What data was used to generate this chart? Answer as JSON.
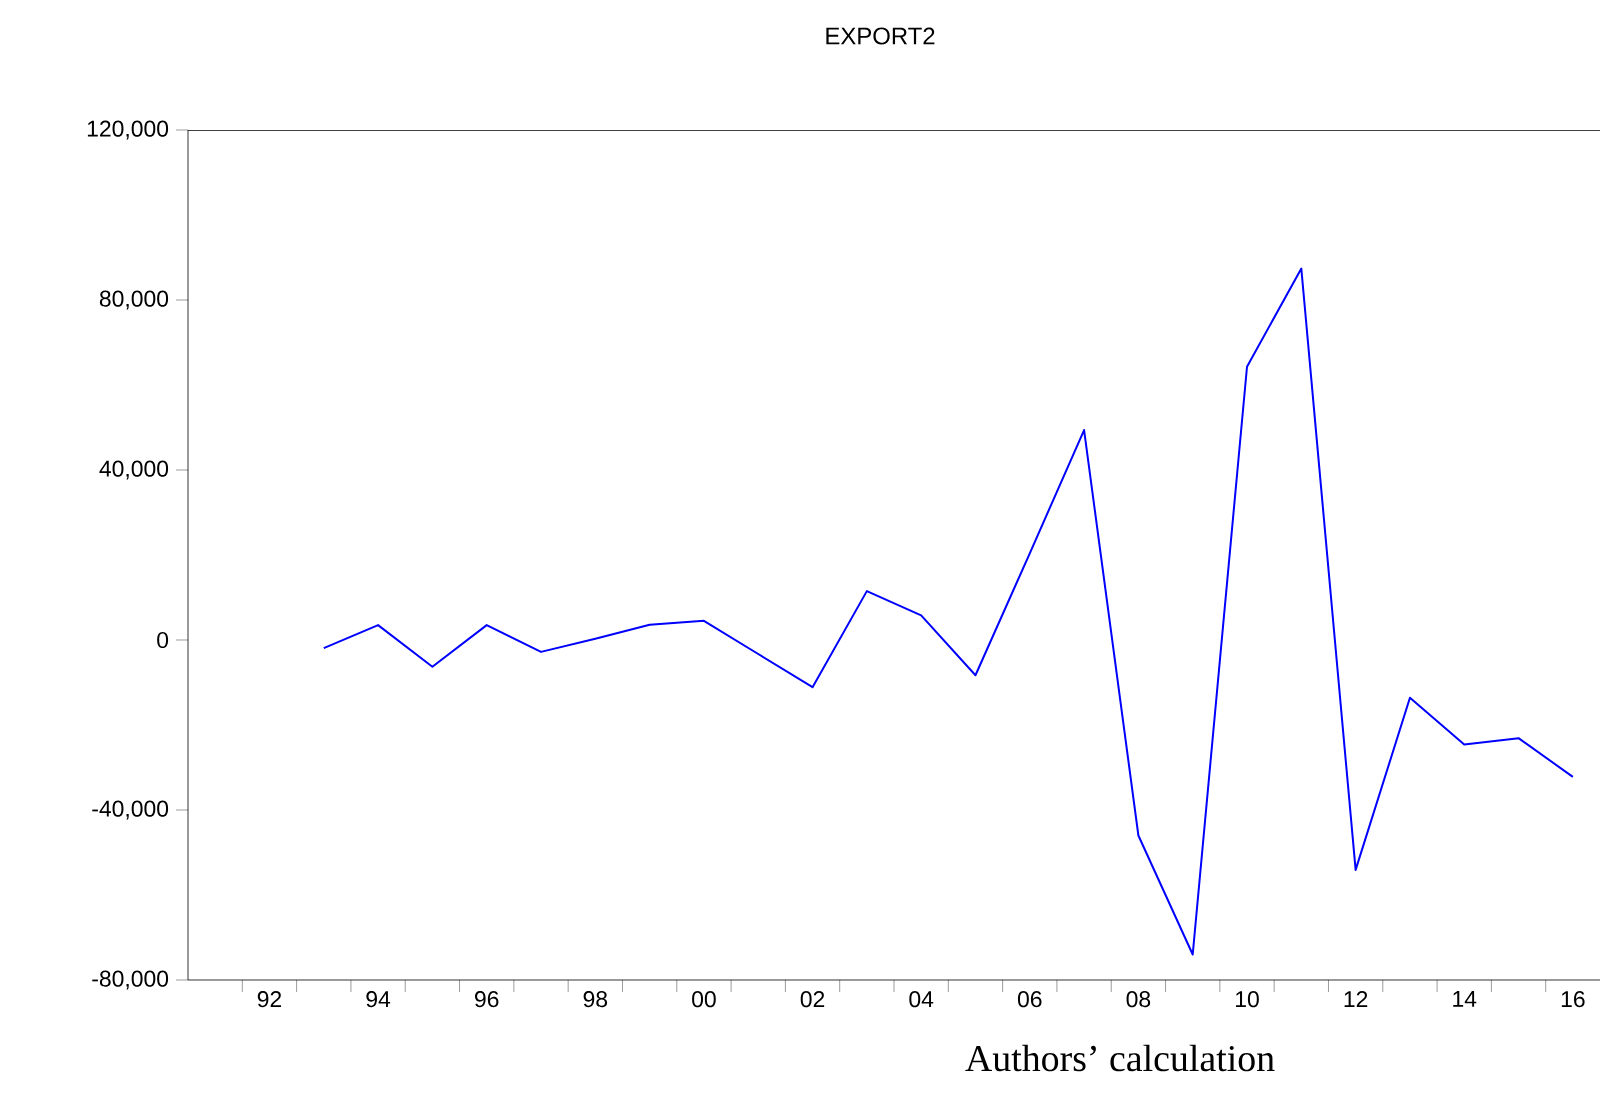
{
  "chart_data": {
    "type": "line",
    "title": "EXPORT2",
    "annotations": [
      "Authors’ calculation"
    ],
    "x": [
      1993,
      1994,
      1995,
      1996,
      1997,
      1998,
      1999,
      2000,
      2001,
      2002,
      2003,
      2004,
      2005,
      2006,
      2007,
      2008,
      2009,
      2010,
      2011,
      2012,
      2013,
      2014,
      2015,
      2016
    ],
    "series": [
      {
        "color": "#0000ff",
        "values": [
          -1900,
          3500,
          -6300,
          3500,
          -2800,
          300,
          3600,
          4500,
          -3300,
          -11100,
          11500,
          5800,
          -8300,
          20400,
          49400,
          -46000,
          -74000,
          64300,
          87400,
          -54100,
          -13600,
          -24600,
          -23100,
          -32200
        ]
      }
    ],
    "xlim": [
      1990.5,
      2016.5
    ],
    "xticks": [
      {
        "value": 1992,
        "label": "92"
      },
      {
        "value": 1994,
        "label": "94"
      },
      {
        "value": 1996,
        "label": "96"
      },
      {
        "value": 1998,
        "label": "98"
      },
      {
        "value": 2000,
        "label": "00"
      },
      {
        "value": 2002,
        "label": "02"
      },
      {
        "value": 2004,
        "label": "04"
      },
      {
        "value": 2006,
        "label": "06"
      },
      {
        "value": 2008,
        "label": "08"
      },
      {
        "value": 2010,
        "label": "10"
      },
      {
        "value": 2012,
        "label": "12"
      },
      {
        "value": 2014,
        "label": "14"
      },
      {
        "value": 2016,
        "label": "16"
      },
      {
        "value": 1991.5,
        "label": null
      },
      {
        "value": 1992.5,
        "label": null
      },
      {
        "value": 1993.5,
        "label": null
      },
      {
        "value": 1994.5,
        "label": null
      },
      {
        "value": 1995.5,
        "label": null
      },
      {
        "value": 1996.5,
        "label": null
      },
      {
        "value": 1997.5,
        "label": null
      },
      {
        "value": 1998.5,
        "label": null
      },
      {
        "value": 1999.5,
        "label": null
      },
      {
        "value": 2000.5,
        "label": null
      },
      {
        "value": 2001.5,
        "label": null
      },
      {
        "value": 2002.5,
        "label": null
      },
      {
        "value": 2003.5,
        "label": null
      },
      {
        "value": 2004.5,
        "label": null
      },
      {
        "value": 2005.5,
        "label": null
      },
      {
        "value": 2006.5,
        "label": null
      },
      {
        "value": 2007.5,
        "label": null
      },
      {
        "value": 2008.5,
        "label": null
      },
      {
        "value": 2009.5,
        "label": null
      },
      {
        "value": 2010.5,
        "label": null
      },
      {
        "value": 2011.5,
        "label": null
      },
      {
        "value": 2012.5,
        "label": null
      },
      {
        "value": 2013.5,
        "label": null
      },
      {
        "value": 2014.5,
        "label": null
      },
      {
        "value": 2015.5,
        "label": null
      }
    ],
    "ylim": [
      -80000,
      120000
    ],
    "yticks": [
      {
        "value": -80000,
        "label": "-80,000"
      },
      {
        "value": -40000,
        "label": "-40,000"
      },
      {
        "value": 0,
        "label": "0"
      },
      {
        "value": 40000,
        "label": "40,000"
      },
      {
        "value": 80000,
        "label": "80,000"
      },
      {
        "value": 120000,
        "label": "120,000"
      }
    ],
    "grid": false,
    "marker": "none",
    "line_style": "solid"
  }
}
